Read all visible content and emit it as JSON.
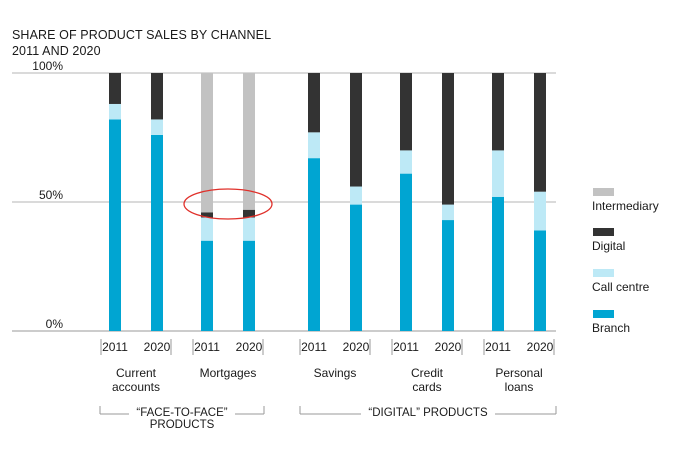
{
  "title": {
    "line1": "SHARE OF PRODUCT SALES BY CHANNEL",
    "line2": "2011 AND 2020"
  },
  "chart_data": {
    "type": "bar",
    "stacked": true,
    "title": "SHARE OF PRODUCT SALES BY CHANNEL 2011 AND 2020",
    "y_tick_labels": [
      "0%",
      "50%",
      "100%"
    ],
    "ylim": [
      0,
      100
    ],
    "grid": true,
    "legend_placement": "right",
    "products": [
      {
        "label": "Current accounts",
        "label_lines": [
          "Current",
          "accounts"
        ]
      },
      {
        "label": "Mortgages",
        "label_lines": [
          "Mortgages"
        ]
      },
      {
        "label": "Savings",
        "label_lines": [
          "Savings"
        ]
      },
      {
        "label": "Credit cards",
        "label_lines": [
          "Credit",
          "cards"
        ]
      },
      {
        "label": "Personal loans",
        "label_lines": [
          "Personal",
          "loans"
        ]
      }
    ],
    "years": [
      "2011",
      "2020"
    ],
    "categories": [
      "Current accounts 2011",
      "Current accounts 2020",
      "Mortgages 2011",
      "Mortgages 2020",
      "Savings 2011",
      "Savings 2020",
      "Credit cards 2011",
      "Credit cards 2020",
      "Personal loans 2011",
      "Personal loans 2020"
    ],
    "series": [
      {
        "name": "Branch",
        "color": "#00a5d2",
        "values": [
          82,
          76,
          35,
          35,
          67,
          49,
          61,
          43,
          52,
          39
        ]
      },
      {
        "name": "Call centre",
        "color": "#bde9f6",
        "values": [
          6,
          6,
          9,
          9,
          10,
          7,
          9,
          6,
          18,
          15
        ]
      },
      {
        "name": "Digital",
        "color": "#333333",
        "values": [
          12,
          18,
          2,
          3,
          23,
          44,
          30,
          51,
          30,
          46
        ]
      },
      {
        "name": "Intermediary",
        "color": "#c2c2c2",
        "values": [
          0,
          0,
          54,
          53,
          0,
          0,
          0,
          0,
          0,
          0
        ]
      }
    ],
    "groups": [
      {
        "label_lines": [
          "“FACE-TO-FACE”",
          "PRODUCTS"
        ],
        "products": [
          0,
          1
        ]
      },
      {
        "label_lines": [
          "“DIGITAL” PRODUCTS"
        ],
        "products": [
          2,
          3,
          4
        ]
      }
    ],
    "annotation": {
      "type": "ellipse",
      "target": "Mortgages Digital segment",
      "color": "#e0302a"
    }
  }
}
